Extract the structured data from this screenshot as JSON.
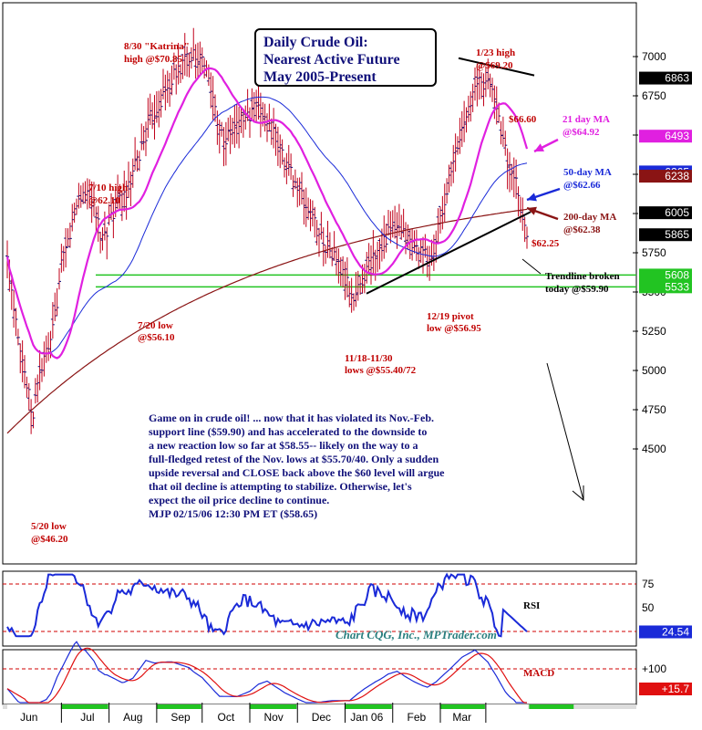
{
  "title_lines": [
    "Daily Crude Oil:",
    "Nearest Active Future",
    "May 2005-Present"
  ],
  "commentary_lines": [
    "Game on in crude oil! ... now that it has violated its Nov.-Feb.",
    "support line ($59.90) and has accelerated to the downside to",
    "a new reaction low so far at $58.55-- likely on the way to a",
    "full-fledged retest of the Nov. lows at $55.70/40. Only a sudden",
    "upside reversal and CLOSE back above the $60 level will argue",
    "that oil decline is attempting to stabilize. Otherwise, let's",
    "expect the oil price decline to continue.",
    "MJP  02/15/06 12:30 PM ET ($58.65)"
  ],
  "credit": "Chart CQG, Inc., MPTrader.com",
  "colors": {
    "price_bars": "#c0001a",
    "ma21": "#e020e0",
    "ma50": "#1a2ad8",
    "ma200": "#8a1414",
    "support": "#22c422",
    "annotation": "#c00000",
    "navy": "#10107a",
    "rsi": "#1a2ad8",
    "macd_signal": "#e01010"
  },
  "chart_data": {
    "type": "bar",
    "subtype": "ohlc-daily",
    "y_ticks": [
      "7000",
      "6750",
      "6500",
      "6250",
      "6000",
      "5750",
      "5500",
      "5250",
      "5000",
      "4750",
      "4500"
    ],
    "ylim": [
      4400,
      7200
    ],
    "x_ticks": [
      "Jun",
      "Jul",
      "Aug",
      "Sep",
      "Oct",
      "Nov",
      "Dec",
      "Jan 06",
      "Feb",
      "Mar"
    ],
    "price_boxes": [
      {
        "label": "6863",
        "value": 6863,
        "color": "#000000"
      },
      {
        "label": "6493",
        "value": 6493,
        "color": "#e020e0"
      },
      {
        "label": "6265",
        "value": 6265,
        "color": "#1a2ad8"
      },
      {
        "label": "6238",
        "value": 6238,
        "color": "#8a1414"
      },
      {
        "label": "6005",
        "value": 6005,
        "color": "#000000"
      },
      {
        "label": "5865",
        "value": 5865,
        "color": "#000000"
      },
      {
        "label": "5608",
        "value": 5608,
        "color": "#22c422"
      },
      {
        "label": "5533",
        "value": 5533,
        "color": "#22c422"
      }
    ],
    "support_levels": [
      5608,
      5533
    ],
    "annotations": [
      "8/30 \"Katrina\"",
      "high @$70.85",
      "1/23 high",
      "@$69.20",
      "$66.60",
      "21 day MA",
      "@$64.92",
      "50-day MA",
      "@$62.66",
      "200-day MA",
      "@$62.38",
      "7/10 high",
      "@62.10",
      "$62.25",
      "Trendline broken",
      "today @$59.90",
      "12/19 pivot",
      "low @$56.95",
      "7/20 low",
      "@$56.10",
      "11/18-11/30",
      "lows @$55.40/72",
      "5/20 low",
      "@$46.20"
    ],
    "key_points": [
      {
        "label": "5/20 low",
        "value": 46.2
      },
      {
        "label": "7/10 high",
        "value": 62.1
      },
      {
        "label": "7/20 low",
        "value": 56.1
      },
      {
        "label": "8/30 Katrina high",
        "value": 70.85
      },
      {
        "label": "11/18-11/30 lows",
        "value": [
          55.4,
          55.72
        ]
      },
      {
        "label": "12/19 pivot low",
        "value": 56.95
      },
      {
        "label": "1/23 high",
        "value": 69.2
      }
    ],
    "moving_averages": [
      {
        "name": "21 day MA",
        "last": 64.92
      },
      {
        "name": "50-day MA",
        "last": 62.66
      },
      {
        "name": "200-day MA",
        "last": 62.38
      }
    ],
    "rsi": {
      "label": "RSI",
      "y_ticks": [
        "75",
        "50"
      ],
      "last_box": "24.54",
      "last": 24.54
    },
    "macd": {
      "label": "MACD",
      "y_ticks": [
        "+100"
      ],
      "last_box": "+15.7"
    }
  }
}
